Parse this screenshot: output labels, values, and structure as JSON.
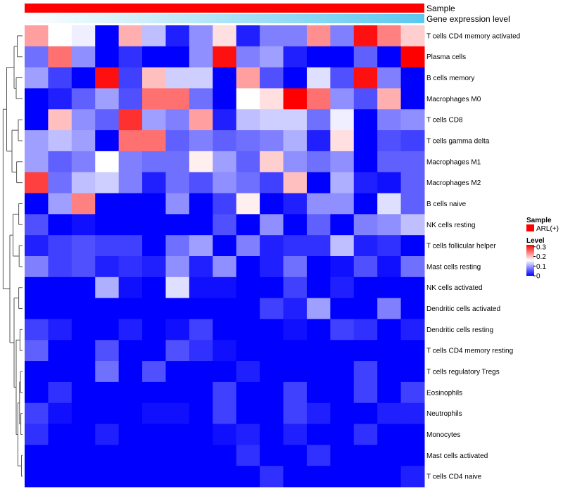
{
  "chart_data": {
    "type": "heatmap",
    "annotation_tracks": [
      {
        "name": "Sample",
        "color": "#ff0000"
      },
      {
        "name": "Gene expression level",
        "gradient_start": "#ffffff",
        "gradient_end": "#5ac8f0"
      }
    ],
    "rows": [
      "T cells CD4 memory activated",
      "Plasma cells",
      "B cells memory",
      "Macrophages M0",
      "T cells CD8",
      "T cells gamma delta",
      "Macrophages M1",
      "Macrophages M2",
      "B cells naive",
      "NK cells resting",
      "T cells follicular helper",
      "Mast cells resting",
      "NK cells activated",
      "Dendritic cells activated",
      "Dendritic cells resting",
      "T cells CD4 memory resting",
      "T cells regulatory  Tregs",
      "Eosinophils",
      "Neutrophils",
      "Monocytes",
      "Mast cells activated",
      "T cells CD4 naive"
    ],
    "n_samples": 17,
    "values": [
      [
        0.22,
        0.16,
        0.15,
        0.0,
        0.21,
        0.12,
        0.02,
        0.09,
        0.18,
        0.02,
        0.08,
        0.08,
        0.23,
        0.08,
        0.31,
        0.24,
        0.19
      ],
      [
        0.07,
        0.25,
        0.09,
        0.0,
        0.03,
        0.0,
        0.0,
        0.09,
        0.31,
        0.08,
        0.1,
        0.02,
        0.0,
        0.0,
        0.06,
        0.0,
        0.32
      ],
      [
        0.1,
        0.04,
        0.0,
        0.31,
        0.04,
        0.2,
        0.13,
        0.13,
        0.0,
        0.22,
        0.05,
        0.0,
        0.14,
        0.05,
        0.31,
        0.08,
        0.0
      ],
      [
        0.0,
        0.02,
        0.06,
        0.1,
        0.05,
        0.25,
        0.25,
        0.07,
        0.0,
        0.16,
        0.18,
        0.32,
        0.25,
        0.09,
        0.05,
        0.21,
        0.0
      ],
      [
        0.0,
        0.2,
        0.09,
        0.06,
        0.29,
        0.1,
        0.08,
        0.22,
        0.02,
        0.12,
        0.13,
        0.13,
        0.07,
        0.15,
        0.0,
        0.08,
        0.09
      ],
      [
        0.1,
        0.12,
        0.1,
        0.0,
        0.25,
        0.25,
        0.06,
        0.08,
        0.06,
        0.07,
        0.08,
        0.11,
        0.02,
        0.18,
        0.0,
        0.05,
        0.04
      ],
      [
        0.1,
        0.06,
        0.08,
        0.16,
        0.08,
        0.07,
        0.07,
        0.17,
        0.1,
        0.06,
        0.19,
        0.09,
        0.07,
        0.09,
        0.0,
        0.06,
        0.06
      ],
      [
        0.28,
        0.07,
        0.12,
        0.13,
        0.08,
        0.02,
        0.07,
        0.05,
        0.09,
        0.07,
        0.04,
        0.2,
        0.0,
        0.11,
        0.02,
        0.01,
        0.06
      ],
      [
        0.0,
        0.1,
        0.24,
        0.0,
        0.0,
        0.0,
        0.09,
        0.0,
        0.04,
        0.17,
        0.0,
        0.02,
        0.09,
        0.09,
        0.0,
        0.14,
        0.06
      ],
      [
        0.05,
        0.0,
        0.01,
        0.0,
        0.0,
        0.0,
        0.0,
        0.0,
        0.05,
        0.0,
        0.09,
        0.0,
        0.06,
        0.0,
        0.08,
        0.09,
        0.12
      ],
      [
        0.02,
        0.04,
        0.05,
        0.04,
        0.04,
        0.0,
        0.07,
        0.1,
        0.0,
        0.08,
        0.02,
        0.03,
        0.03,
        0.12,
        0.02,
        0.03,
        0.0
      ],
      [
        0.08,
        0.04,
        0.05,
        0.02,
        0.03,
        0.02,
        0.09,
        0.02,
        0.09,
        0.0,
        0.02,
        0.07,
        0.0,
        0.01,
        0.05,
        0.01,
        0.07
      ],
      [
        0.0,
        0.0,
        0.0,
        0.11,
        0.01,
        0.0,
        0.14,
        0.01,
        0.01,
        0.0,
        0.0,
        0.04,
        0.0,
        0.02,
        0.0,
        0.0,
        0.0
      ],
      [
        0.0,
        0.0,
        0.0,
        0.0,
        0.0,
        0.0,
        0.0,
        0.0,
        0.0,
        0.0,
        0.04,
        0.02,
        0.1,
        0.0,
        0.0,
        0.08,
        0.0
      ],
      [
        0.04,
        0.02,
        0.0,
        0.0,
        0.02,
        0.0,
        0.01,
        0.04,
        0.0,
        0.0,
        0.0,
        0.01,
        0.0,
        0.04,
        0.03,
        0.0,
        0.02
      ],
      [
        0.06,
        0.0,
        0.0,
        0.05,
        0.0,
        0.0,
        0.05,
        0.03,
        0.01,
        0.0,
        0.0,
        0.0,
        0.0,
        0.0,
        0.0,
        0.0,
        0.0
      ],
      [
        0.0,
        0.0,
        0.0,
        0.07,
        0.0,
        0.05,
        0.0,
        0.0,
        0.0,
        0.02,
        0.0,
        0.0,
        0.0,
        0.0,
        0.04,
        0.0,
        0.0
      ],
      [
        0.0,
        0.03,
        0.0,
        0.0,
        0.0,
        0.0,
        0.0,
        0.0,
        0.04,
        0.0,
        0.0,
        0.04,
        0.0,
        0.0,
        0.04,
        0.0,
        0.04
      ],
      [
        0.04,
        0.01,
        0.0,
        0.0,
        0.0,
        0.01,
        0.01,
        0.0,
        0.04,
        0.0,
        0.0,
        0.04,
        0.02,
        0.0,
        0.0,
        0.02,
        0.02
      ],
      [
        0.03,
        0.0,
        0.0,
        0.02,
        0.0,
        0.0,
        0.0,
        0.0,
        0.01,
        0.02,
        0.0,
        0.02,
        0.0,
        0.0,
        0.03,
        0.0,
        0.0
      ],
      [
        0.0,
        0.0,
        0.0,
        0.0,
        0.0,
        0.0,
        0.0,
        0.0,
        0.0,
        0.03,
        0.0,
        0.0,
        0.03,
        0.0,
        0.0,
        0.0,
        0.0
      ],
      [
        0.0,
        0.0,
        0.0,
        0.0,
        0.0,
        0.0,
        0.0,
        0.0,
        0.0,
        0.0,
        0.03,
        0.0,
        0.0,
        0.0,
        0.0,
        0.0,
        0.02
      ]
    ],
    "color_scale": {
      "low": "#0000ff",
      "mid": "#ffffff",
      "high": "#ff0000",
      "min": 0,
      "mid_value": 0.16,
      "max": 0.32
    },
    "legend": {
      "sample_title": "Sample",
      "sample_entry": "ARL(+)",
      "level_title": "Level",
      "level_ticks": [
        "0.3",
        "0.2",
        "0.1",
        "0"
      ],
      "level_tick_values": [
        0.3,
        0.2,
        0.1,
        0.0
      ],
      "placement": "right"
    },
    "dendrogram": "rows"
  }
}
